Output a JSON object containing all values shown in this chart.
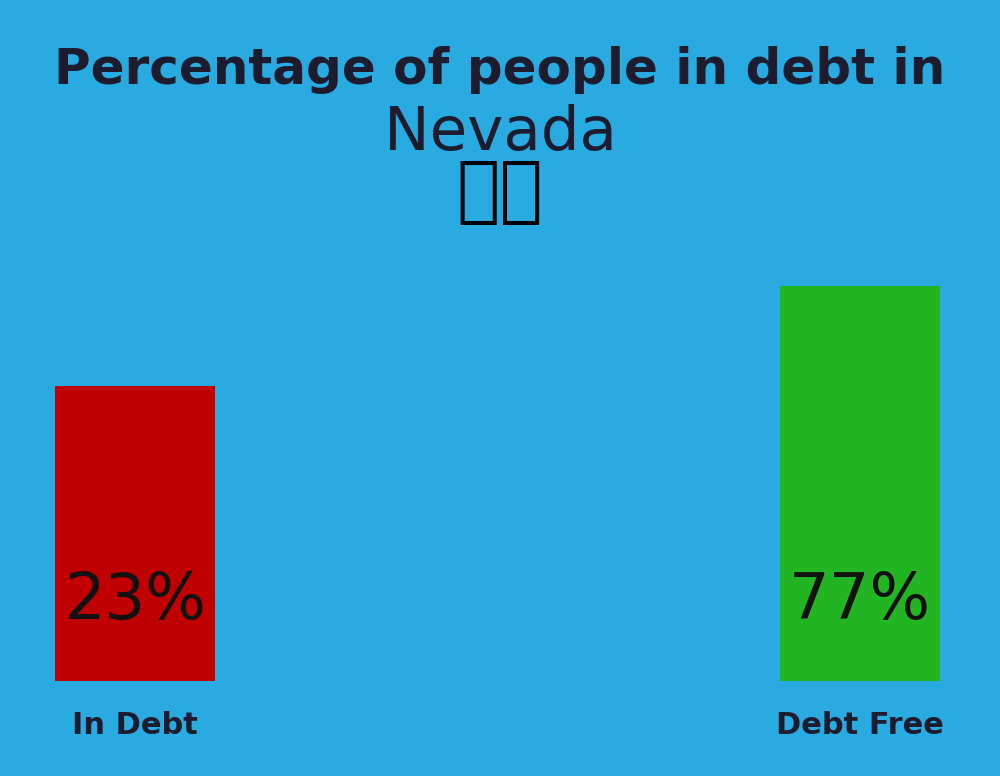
{
  "background_color": "#29ABE2",
  "title_line1": "Percentage of people in debt in",
  "title_line2": "Nevada",
  "title_color": "#1C1C2E",
  "title_fontsize": 36,
  "nevada_fontsize": 44,
  "bar_in_debt_value": 23,
  "bar_debt_free_value": 77,
  "bar_in_debt_color": "#C00000",
  "bar_debt_free_color": "#22B422",
  "bar_label_color": "#111111",
  "bar_label_fontsize": 46,
  "label_in_debt": "In Debt",
  "label_debt_free": "Debt Free",
  "label_fontsize": 22,
  "label_color": "#1C1C2E",
  "flag_fontsize": 52,
  "fig_width": 10.0,
  "fig_height": 7.76
}
